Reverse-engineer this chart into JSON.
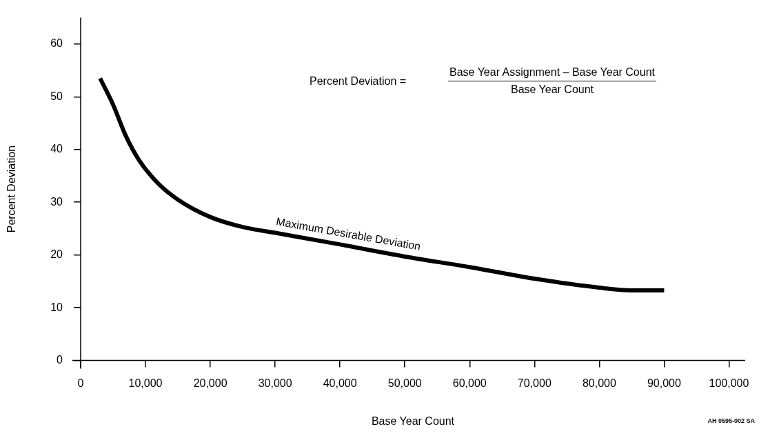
{
  "chart_data": {
    "type": "line",
    "xlabel": "Base Year Count",
    "ylabel": "Percent Deviation",
    "x": [
      3000,
      5000,
      7000,
      9000,
      12000,
      15000,
      20000,
      25000,
      30000,
      40000,
      50000,
      60000,
      70000,
      80000,
      85000,
      90000
    ],
    "series": [
      {
        "name": "Maximum Desirable Deviation",
        "color": "#000000",
        "values": [
          53.5,
          48.5,
          42.5,
          38,
          33.5,
          30.5,
          27.2,
          25.3,
          24.2,
          22,
          19.7,
          17.7,
          15.5,
          13.8,
          13.3,
          13.3
        ]
      }
    ],
    "xlim": [
      0,
      102500
    ],
    "ylim": [
      0,
      65
    ],
    "xticks": [
      0,
      {
        "value": 10000,
        "label": "10,000"
      },
      {
        "value": 20000,
        "label": "20,000"
      },
      {
        "value": 30000,
        "label": "30,000"
      },
      {
        "value": 40000,
        "label": "40,000"
      },
      {
        "value": 50000,
        "label": "50,000"
      },
      {
        "value": 60000,
        "label": "60,000"
      },
      {
        "value": 70000,
        "label": "70,000"
      },
      {
        "value": 80000,
        "label": "80,000"
      },
      {
        "value": 90000,
        "label": "90,000"
      },
      {
        "value": 100000,
        "label": "100,000"
      }
    ],
    "yticks": [
      0,
      10,
      20,
      30,
      40,
      50,
      60
    ],
    "grid": false,
    "legend": false,
    "marker": "none",
    "line_style": "solid",
    "annotations": [
      "Percent Deviation  =",
      "Base Year Assignment – Base Year Count",
      "Base Year Count",
      "AH 0595-002 SA"
    ]
  }
}
